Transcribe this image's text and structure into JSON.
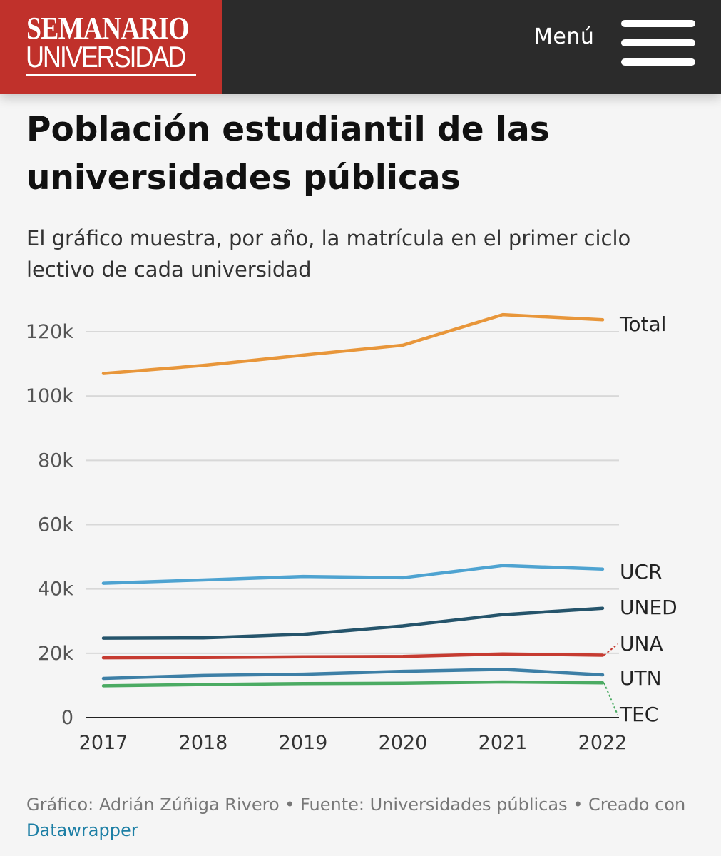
{
  "header": {
    "logo_line1": "SEMANARIO",
    "logo_line2": "UNIVERSIDAD",
    "menu_label": "Menú",
    "brand_color": "#c0312b",
    "bar_color": "#2b2b2b"
  },
  "article": {
    "title": "Población estudiantil de las universidades públicas",
    "subtitle": "El gráfico muestra, por año,  la matrícula en el primer ciclo lectivo de cada universidad"
  },
  "chart_data": {
    "type": "line",
    "title": "Población estudiantil de las universidades públicas",
    "subtitle": "El gráfico muestra, por año,  la matrícula en el primer ciclo lectivo de cada universidad",
    "x": [
      "2017",
      "2018",
      "2019",
      "2020",
      "2021",
      "2022"
    ],
    "ylim": [
      0,
      125000
    ],
    "yticks": [
      0,
      20000,
      40000,
      60000,
      80000,
      100000,
      120000
    ],
    "ytick_labels": [
      "0",
      "20k",
      "40k",
      "60k",
      "80k",
      "100k",
      "120k"
    ],
    "grid": true,
    "legend": "direct labels at line ends (right)",
    "series": [
      {
        "name": "Total",
        "color": "#e8963a",
        "values": [
          107000,
          109500,
          112700,
          115800,
          125300,
          123700
        ]
      },
      {
        "name": "UCR",
        "color": "#4ea3d1",
        "values": [
          41800,
          42800,
          43900,
          43500,
          47300,
          46200
        ]
      },
      {
        "name": "UNED",
        "color": "#25546b",
        "values": [
          24700,
          24800,
          25900,
          28500,
          32000,
          34000
        ]
      },
      {
        "name": "UNA",
        "color": "#c63b31",
        "values": [
          18600,
          18700,
          18900,
          19000,
          19800,
          19400
        ]
      },
      {
        "name": "UTN",
        "color": "#3d7fa6",
        "values": [
          12200,
          13100,
          13500,
          14400,
          15000,
          13300
        ]
      },
      {
        "name": "TEC",
        "color": "#4bab63",
        "values": [
          9900,
          10300,
          10600,
          10700,
          11100,
          10800
        ]
      }
    ]
  },
  "footer": {
    "credit_text": "Gráfico: Adrián Zúñiga Rivero • Fuente: Universidades públicas • Creado con ",
    "link_text": "Datawrapper",
    "link_color": "#1d7fa5"
  }
}
